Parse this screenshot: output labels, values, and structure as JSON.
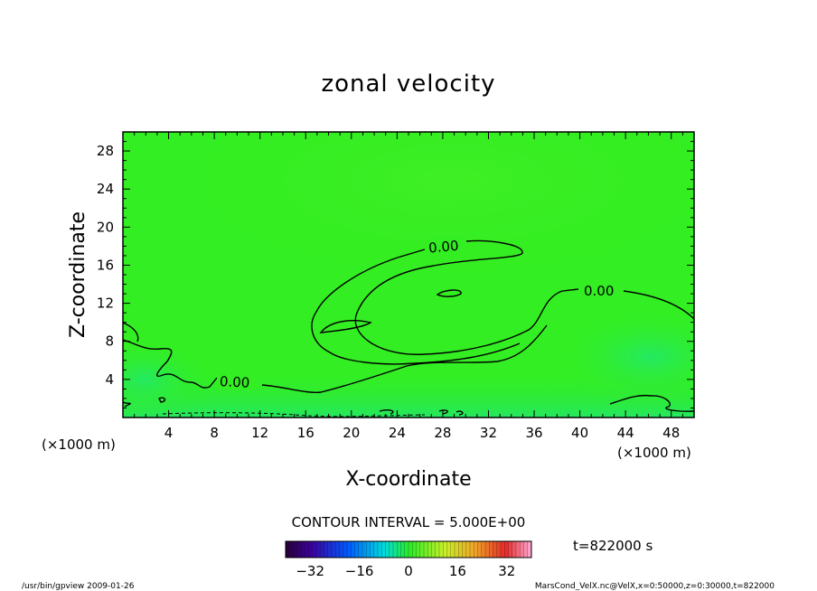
{
  "chart_data": {
    "type": "heatmap",
    "title": "zonal velocity",
    "xlabel": "X-coordinate",
    "ylabel": "Z-coordinate",
    "x_unit": "(×1000 m)",
    "y_unit": "(×1000 m)",
    "xlim": [
      0,
      50
    ],
    "ylim": [
      0,
      30
    ],
    "xticks": [
      4,
      8,
      12,
      16,
      20,
      24,
      28,
      32,
      36,
      40,
      44,
      48
    ],
    "yticks": [
      4,
      8,
      12,
      16,
      20,
      24,
      28
    ],
    "field_color": "#33ee22",
    "contour_labels": [
      {
        "text": "0.00",
        "x": 27.5,
        "y": 18.0
      },
      {
        "text": "0.00",
        "x": 41.5,
        "y": 13.0
      },
      {
        "text": "0.00",
        "x": 9.5,
        "y": 3.7
      }
    ],
    "contour_interval_text": "CONTOUR INTERVAL = 5.000E+00",
    "time_text": "t=822000 s",
    "colorbar": {
      "ticks": [
        "−32",
        "−16",
        "0",
        "16",
        "32"
      ],
      "range": [
        -40,
        40
      ]
    },
    "footer_left": "/usr/bin/gpview  2009-01-26",
    "footer_right": "MarsCond_VelX.nc@VelX,x=0:50000,z=0:30000,t=822000"
  }
}
